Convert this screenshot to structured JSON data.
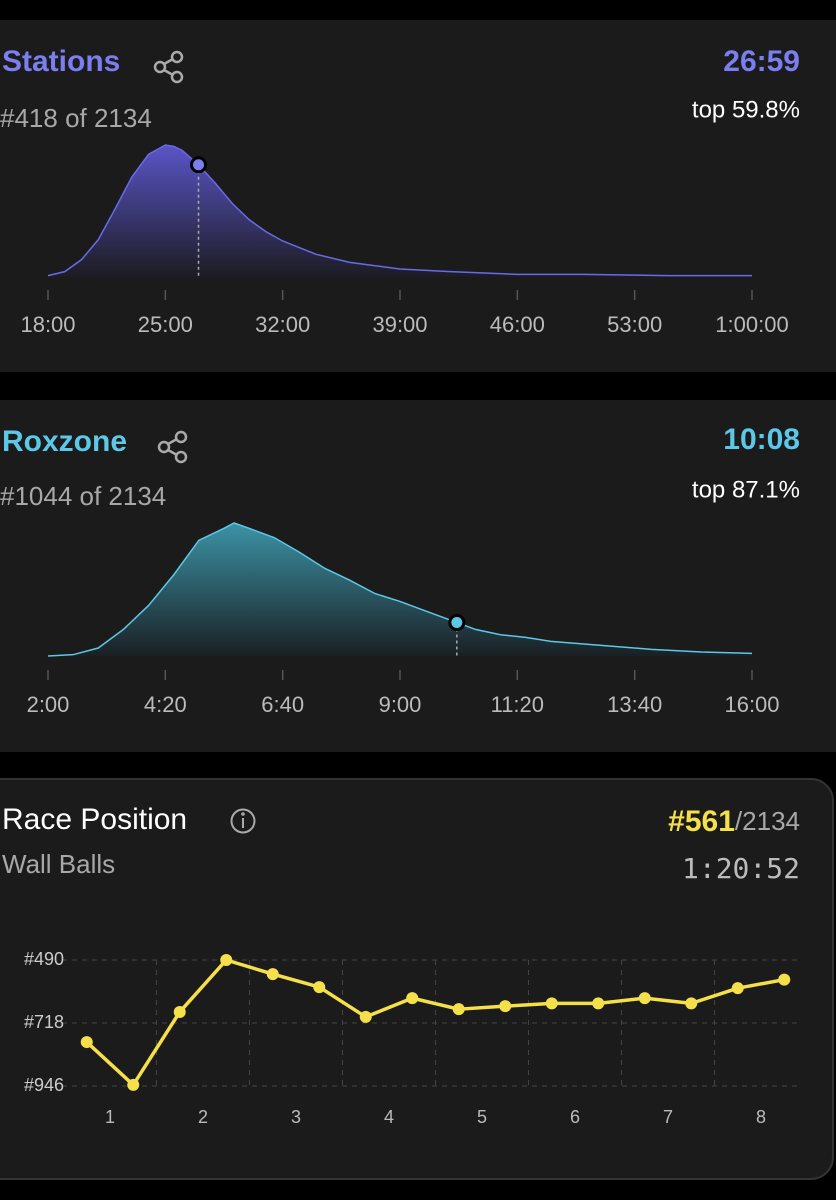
{
  "chart_data": [
    {
      "type": "area",
      "title": "Stations",
      "subtitle": "#418 of 2134",
      "result": {
        "value": 26.98,
        "label": "26:59"
      },
      "percentile": "top 59.8%",
      "color": "#7b7ef0",
      "x": [
        18,
        19,
        20,
        21,
        22,
        23,
        24,
        25,
        25.5,
        26,
        27,
        28,
        29,
        30,
        31,
        32,
        34,
        36,
        39,
        42,
        46,
        50,
        55,
        60
      ],
      "values": [
        1,
        4,
        13,
        28,
        51,
        75,
        92,
        99,
        98,
        95,
        84,
        70,
        55,
        43,
        34,
        27,
        17,
        11,
        6,
        4,
        2,
        2,
        1,
        1
      ],
      "xlim": [
        18,
        60
      ],
      "xticks": [
        {
          "value": 18,
          "label": "18:00"
        },
        {
          "value": 25,
          "label": "25:00"
        },
        {
          "value": 32,
          "label": "32:00"
        },
        {
          "value": 39,
          "label": "39:00"
        },
        {
          "value": 46,
          "label": "46:00"
        },
        {
          "value": 53,
          "label": "53:00"
        },
        {
          "value": 60,
          "label": "1:00:00"
        }
      ]
    },
    {
      "type": "area",
      "title": "Roxzone",
      "subtitle": "#1044 of 2134",
      "result": {
        "value": 10.13,
        "label": "10:08"
      },
      "percentile": "top 87.1%",
      "color": "#5cc8e8",
      "x": [
        2,
        2.5,
        3,
        3.5,
        4,
        4.5,
        5,
        5.5,
        5.7,
        6,
        6.5,
        7,
        7.5,
        8,
        8.5,
        9,
        9.5,
        10,
        10.5,
        11,
        11.5,
        12,
        13,
        14,
        15,
        16
      ],
      "values": [
        0,
        1,
        6,
        20,
        38,
        61,
        87,
        96,
        100,
        96,
        89,
        78,
        66,
        57,
        47,
        41,
        34,
        27,
        20,
        16,
        14,
        11,
        8,
        5,
        3,
        2
      ],
      "xlim": [
        2,
        16
      ],
      "xticks": [
        {
          "value": 2,
          "label": "2:00"
        },
        {
          "value": 4.333,
          "label": "4:20"
        },
        {
          "value": 6.667,
          "label": "6:40"
        },
        {
          "value": 9,
          "label": "9:00"
        },
        {
          "value": 11.333,
          "label": "11:20"
        },
        {
          "value": 13.667,
          "label": "13:40"
        },
        {
          "value": 16,
          "label": "16:00"
        }
      ]
    },
    {
      "type": "line",
      "title": "Race Position",
      "subtitle": "Wall Balls",
      "rank": {
        "value": 561,
        "label": "#561"
      },
      "total": "/2134",
      "time": "1:20:52",
      "color": "#f5e04a",
      "x": [
        0.75,
        1.25,
        1.75,
        2.25,
        2.75,
        3.25,
        3.75,
        4.25,
        4.75,
        5.25,
        5.75,
        6.25,
        6.75,
        7.25,
        7.75,
        8.25
      ],
      "values": [
        787,
        942,
        678,
        490,
        541,
        588,
        696,
        628,
        668,
        657,
        647,
        647,
        628,
        647,
        592,
        561
      ],
      "xlim": [
        0.5,
        8.5
      ],
      "xticks": [
        1,
        2,
        3,
        4,
        5,
        6,
        7,
        8
      ],
      "ylim": [
        946,
        490
      ],
      "yticks": [
        {
          "value": 490,
          "label": "#490"
        },
        {
          "value": 718,
          "label": "#718"
        },
        {
          "value": 946,
          "label": "#946"
        }
      ],
      "grid": true
    }
  ]
}
